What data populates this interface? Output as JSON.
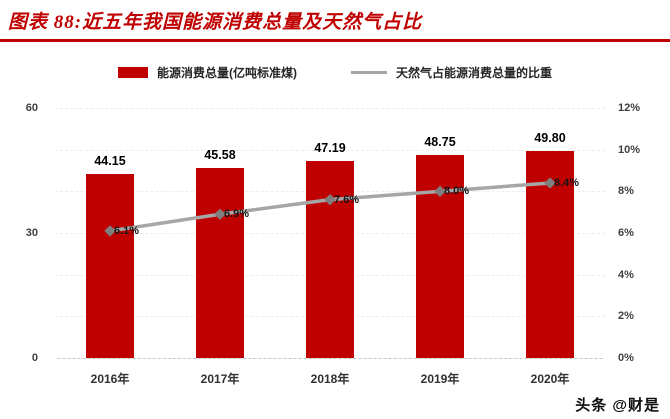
{
  "header": {
    "title": "图表 88:近五年我国能源消费总量及天然气占比"
  },
  "legend": {
    "bar": "能源消费总量(亿吨标准煤)",
    "line": "天然气占能源消费总量的比重"
  },
  "watermark": "头条 @财是",
  "colors": {
    "accent_red": "#c00000",
    "bar": "#c00000",
    "line": "#a6a6a6",
    "marker": "#7f7f7f"
  },
  "chart_data": {
    "type": "bar",
    "subtype": "bar-line-combo",
    "title": "图表 88:近五年我国能源消费总量及天然气占比",
    "categories": [
      "2016年",
      "2017年",
      "2018年",
      "2019年",
      "2020年"
    ],
    "series": [
      {
        "name": "能源消费总量(亿吨标准煤)",
        "type": "bar",
        "axis": "left",
        "values": [
          44.15,
          45.58,
          47.19,
          48.75,
          49.8
        ],
        "data_labels": [
          "44.15",
          "45.58",
          "47.19",
          "48.75",
          "49.80"
        ]
      },
      {
        "name": "天然气占能源消费总量的比重",
        "type": "line",
        "axis": "right",
        "values": [
          6.1,
          6.9,
          7.6,
          8.0,
          8.4
        ],
        "data_labels": [
          "6.1%",
          "6.9%",
          "7.6%",
          "8.0%",
          "8.4%"
        ]
      }
    ],
    "left_axis": {
      "min": 0,
      "max": 60,
      "ticks": [
        "0",
        "30",
        "60"
      ]
    },
    "right_axis": {
      "min": 0,
      "max": 12,
      "ticks": [
        "0%",
        "2%",
        "4%",
        "6%",
        "8%",
        "10%",
        "12%"
      ]
    },
    "grid": true,
    "legend_position": "top"
  }
}
